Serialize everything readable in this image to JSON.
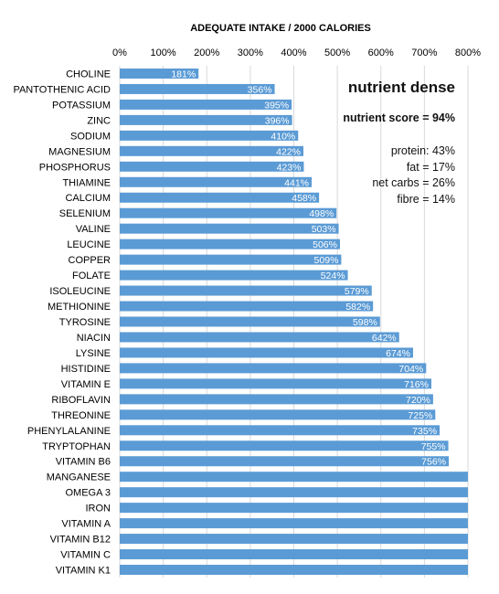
{
  "chart_data": {
    "type": "bar",
    "orientation": "horizontal",
    "title": "ADEQUATE INTAKE / 2000 CALORIES",
    "x_ticks": [
      "0%",
      "100%",
      "200%",
      "300%",
      "400%",
      "500%",
      "600%",
      "700%",
      "800%"
    ],
    "xlim": [
      0,
      800
    ],
    "grid": true,
    "bar_color": "#5b9bd5",
    "categories": [
      "CHOLINE",
      "PANTOTHENIC ACID",
      "POTASSIUM",
      "ZINC",
      "SODIUM",
      "MAGNESIUM",
      "PHOSPHORUS",
      "THIAMINE",
      "CALCIUM",
      "SELENIUM",
      "VALINE",
      "LEUCINE",
      "COPPER",
      "FOLATE",
      "ISOLEUCINE",
      "METHIONINE",
      "TYROSINE",
      "NIACIN",
      "LYSINE",
      "HISTIDINE",
      "VITAMIN E",
      "RIBOFLAVIN",
      "THREONINE",
      "PHENYLALANINE",
      "TRYPTOPHAN",
      "VITAMIN B6",
      "MANGANESE",
      "OMEGA 3",
      "IRON",
      "VITAMIN A",
      "VITAMIN B12",
      "VITAMIN C",
      "VITAMIN K1"
    ],
    "values": [
      181,
      356,
      395,
      396,
      410,
      422,
      423,
      441,
      458,
      498,
      503,
      506,
      509,
      524,
      579,
      582,
      598,
      642,
      674,
      704,
      716,
      720,
      725,
      735,
      755,
      756,
      800,
      800,
      800,
      800,
      800,
      800,
      800
    ],
    "data_labels": [
      "181%",
      "356%",
      "395%",
      "396%",
      "410%",
      "422%",
      "423%",
      "441%",
      "458%",
      "498%",
      "503%",
      "506%",
      "509%",
      "524%",
      "579%",
      "582%",
      "598%",
      "642%",
      "674%",
      "704%",
      "716%",
      "720%",
      "725%",
      "735%",
      "755%",
      "756%",
      "",
      "",
      "",
      "",
      "",
      "",
      ""
    ]
  },
  "annotations": {
    "heading": "nutrient dense",
    "score": "nutrient score = 94%",
    "macros": [
      "protein: 43%",
      "fat = 17%",
      "net carbs = 26%",
      "fibre = 14%"
    ]
  }
}
